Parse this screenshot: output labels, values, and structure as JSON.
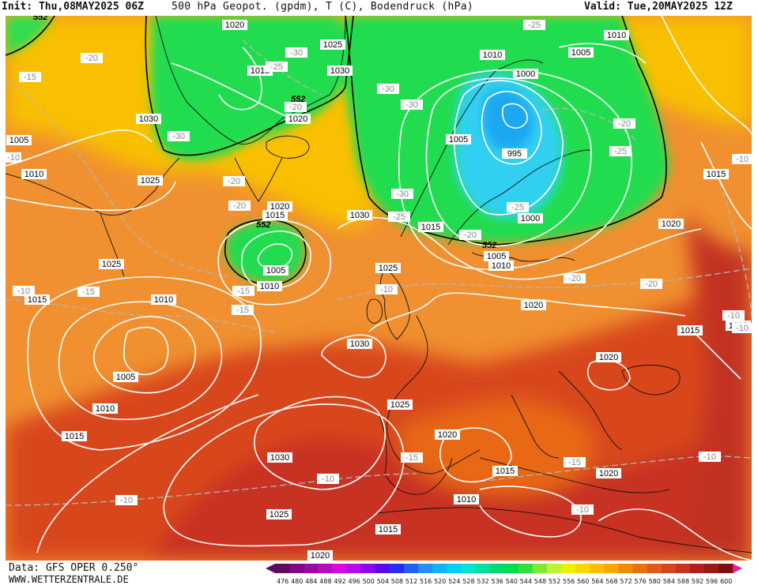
{
  "header": {
    "init": "Init: Thu,08MAY2025 06Z",
    "title": "500 hPa Geopot. (gpdm), T (C), Bodendruck (hPa)",
    "valid": "Valid: Tue,20MAY2025 12Z"
  },
  "footer": {
    "source": "Data: GFS OPER 0.250°",
    "website": "WWW.WETTERZENTRALE.DE"
  },
  "legend": {
    "values": [
      "476",
      "480",
      "484",
      "488",
      "492",
      "496",
      "500",
      "504",
      "508",
      "512",
      "516",
      "520",
      "524",
      "528",
      "532",
      "536",
      "540",
      "544",
      "548",
      "552",
      "556",
      "560",
      "564",
      "568",
      "572",
      "576",
      "580",
      "584",
      "588",
      "592",
      "596",
      "600"
    ],
    "colors": [
      "#5e0a60",
      "#7c0a80",
      "#9a0aa0",
      "#b80ac0",
      "#d60ae0",
      "#b40af0",
      "#8a0af0",
      "#5a0af0",
      "#2a2af0",
      "#2060f0",
      "#2090f0",
      "#10b4f0",
      "#00d0f0",
      "#00e4d0",
      "#00e0a0",
      "#00d870",
      "#00dc50",
      "#30e040",
      "#80e830",
      "#c0f030",
      "#f0f000",
      "#f8d800",
      "#f8c000",
      "#f8a800",
      "#f08c00",
      "#e87010",
      "#e05820",
      "#d84420",
      "#c83020",
      "#b02020",
      "#981818",
      "#7c1010"
    ]
  },
  "map": {
    "colors": {
      "ocean_orange": "#f29232",
      "deep_red": "#c83020",
      "yellow": "#f8c000",
      "green": "#20dc50",
      "cyan": "#30d0f0",
      "light_blue": "#20b0f0",
      "isobar": "#ffffff",
      "isotherm": "#b0b0b0",
      "coast": "#101010"
    },
    "geopotential_label": "552",
    "isobars": [
      "1020",
      "1025",
      "1015",
      "1030",
      "1020",
      "1030",
      "1005",
      "1010",
      "1025",
      "1015",
      "1030",
      "1020",
      "1005",
      "1010",
      "1015",
      "1005",
      "1025",
      "1010",
      "1000",
      "995",
      "1000",
      "1010",
      "1005",
      "1010",
      "1015",
      "1010",
      "1015",
      "1020",
      "1020",
      "1015",
      "1010",
      "1020",
      "1015",
      "1025",
      "1030",
      "1020",
      "1025",
      "1010",
      "1020",
      "1015",
      "1005",
      "1010",
      "1015",
      "1030",
      "1025",
      "1020",
      "1010",
      "1015",
      "1005"
    ],
    "isotherms": [
      "-25",
      "-20",
      "-30",
      "-20",
      "-15",
      "-25",
      "-20",
      "-30",
      "-30",
      "-30",
      "-25",
      "-20",
      "-20",
      "-30",
      "-25",
      "-20",
      "-25",
      "-10",
      "-15",
      "-20",
      "-20",
      "-15",
      "-10",
      "-10",
      "-10",
      "-15",
      "-15",
      "-10",
      "-10",
      "-15",
      "-10",
      "-10",
      "-10",
      "-10"
    ]
  }
}
